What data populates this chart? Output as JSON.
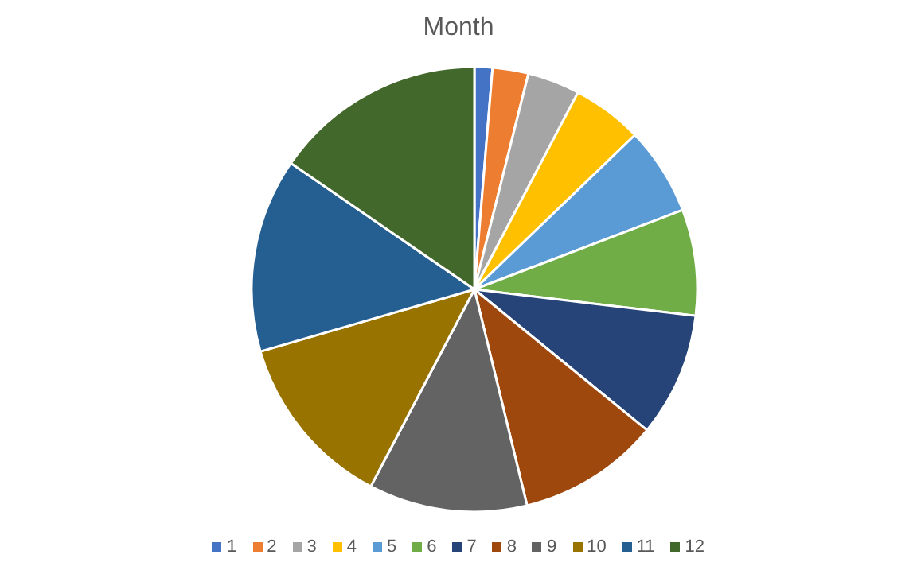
{
  "chart_data": {
    "type": "pie",
    "title": "Month",
    "categories": [
      "1",
      "2",
      "3",
      "4",
      "5",
      "6",
      "7",
      "8",
      "9",
      "10",
      "11",
      "12"
    ],
    "values": [
      1.3,
      2.6,
      3.8,
      5.1,
      6.4,
      7.7,
      9.0,
      10.3,
      11.5,
      12.8,
      14.1,
      15.4
    ],
    "colors": [
      "#4472c4",
      "#ed7d31",
      "#a5a5a5",
      "#ffc000",
      "#5b9bd5",
      "#70ad47",
      "#264478",
      "#9e480e",
      "#636363",
      "#997300",
      "#255e91",
      "#43682b"
    ],
    "legend": "bottom"
  }
}
